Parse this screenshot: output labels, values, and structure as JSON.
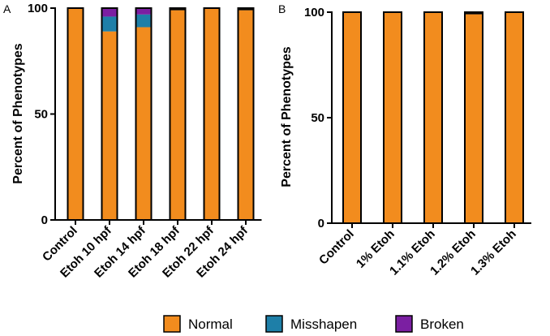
{
  "colors": {
    "Normal": "#F28C1E",
    "Misshapen": "#1E7FA8",
    "Broken": "#7B1FA2",
    "Unlabeled": "#000000"
  },
  "legend": [
    {
      "name": "Normal",
      "color": "#F28C1E"
    },
    {
      "name": "Misshapen",
      "color": "#1E7FA8"
    },
    {
      "name": "Broken",
      "color": "#7B1FA2"
    }
  ],
  "chart_data": [
    {
      "type": "bar",
      "stacked": true,
      "panel": "A",
      "ylabel": "Percent of Phenotypes",
      "ylim": [
        0,
        100
      ],
      "yticks": [
        0,
        50,
        100
      ],
      "categories": [
        "Control",
        "Etoh 10 hpf",
        "Etoh 14 hpf",
        "Etoh 18 hpf",
        "Etoh 22 hpf",
        "Etoh 24 hpf"
      ],
      "series": [
        {
          "name": "Normal",
          "color": "#F28C1E",
          "values": [
            100,
            89,
            91,
            99,
            100,
            99
          ]
        },
        {
          "name": "Misshapen",
          "color": "#1E7FA8",
          "values": [
            0,
            7,
            6,
            0,
            0,
            0
          ]
        },
        {
          "name": "Broken",
          "color": "#7B1FA2",
          "values": [
            0,
            4,
            3,
            0,
            0,
            0
          ]
        },
        {
          "color": "#000000",
          "values": [
            0,
            0,
            0,
            1,
            0,
            1
          ]
        }
      ]
    },
    {
      "type": "bar",
      "stacked": true,
      "panel": "B",
      "ylabel": "Percent of Phenotypes",
      "ylim": [
        0,
        100
      ],
      "yticks": [
        0,
        50,
        100
      ],
      "categories": [
        "Control",
        "1% Etoh",
        "1.1% Etoh",
        "1.2% Etoh",
        "1.3% Etoh"
      ],
      "series": [
        {
          "name": "Normal",
          "color": "#F28C1E",
          "values": [
            100,
            100,
            100,
            99,
            100
          ]
        },
        {
          "name": "Misshapen",
          "color": "#1E7FA8",
          "values": [
            0,
            0,
            0,
            0,
            0
          ]
        },
        {
          "name": "Broken",
          "color": "#7B1FA2",
          "values": [
            0,
            0,
            0,
            0,
            0
          ]
        },
        {
          "color": "#000000",
          "values": [
            0,
            0,
            0,
            1,
            0
          ]
        }
      ]
    }
  ]
}
